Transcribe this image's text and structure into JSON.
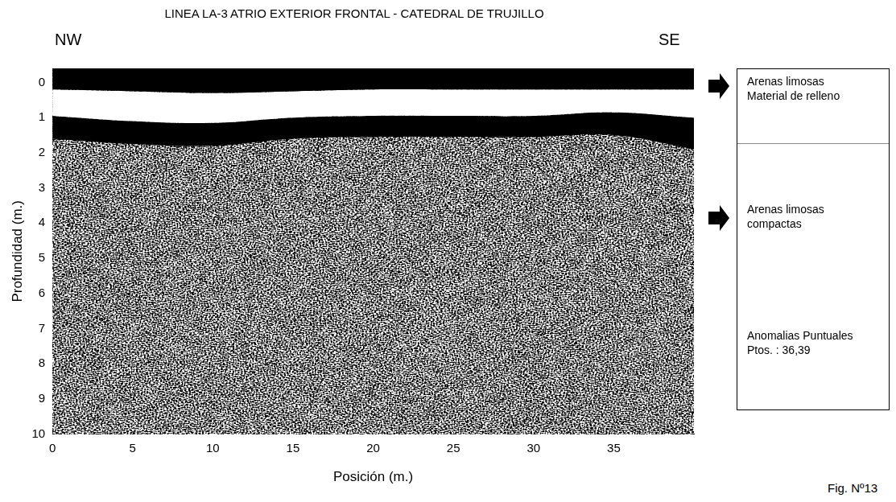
{
  "chart_data": {
    "type": "area",
    "title": "LINEA LA-3  ATRIO EXTERIOR FRONTAL - CATEDRAL DE TRUJILLO",
    "x_label": "Posición (m.)",
    "y_label": "Profundidad (m.)",
    "x": [
      0,
      5,
      10,
      15,
      20,
      25,
      30,
      35,
      40
    ],
    "series": [
      {
        "color": "#000000",
        "values": [
          0.2,
          0.25,
          0.3,
          0.25,
          0.2,
          0.2,
          0.2,
          0.2,
          0.2
        ]
      },
      {
        "color": "#ffffff",
        "values": [
          0.95,
          1.1,
          1.15,
          1.0,
          0.95,
          0.95,
          0.95,
          0.85,
          1.0
        ]
      },
      {
        "color": "#000000",
        "values": [
          1.6,
          1.75,
          1.8,
          1.6,
          1.55,
          1.55,
          1.55,
          1.5,
          1.9
        ]
      }
    ],
    "xlim": [
      0,
      40
    ],
    "xticks": [
      0,
      5,
      10,
      15,
      20,
      25,
      30,
      35
    ],
    "ylim": [
      -0.4,
      10
    ],
    "yticks": [
      0,
      1,
      2,
      3,
      4,
      5,
      6,
      7,
      8,
      9,
      10
    ],
    "grid": false
  },
  "directions": [
    "NW",
    "SE"
  ],
  "legend_box": [
    [
      "Arenas limosas",
      "Material de relleno"
    ],
    [
      "Arenas limosas",
      "compactas"
    ],
    [
      "Anomalias Puntuales",
      "Ptos. : 36,39"
    ]
  ],
  "figure": "Fig. Nº13"
}
